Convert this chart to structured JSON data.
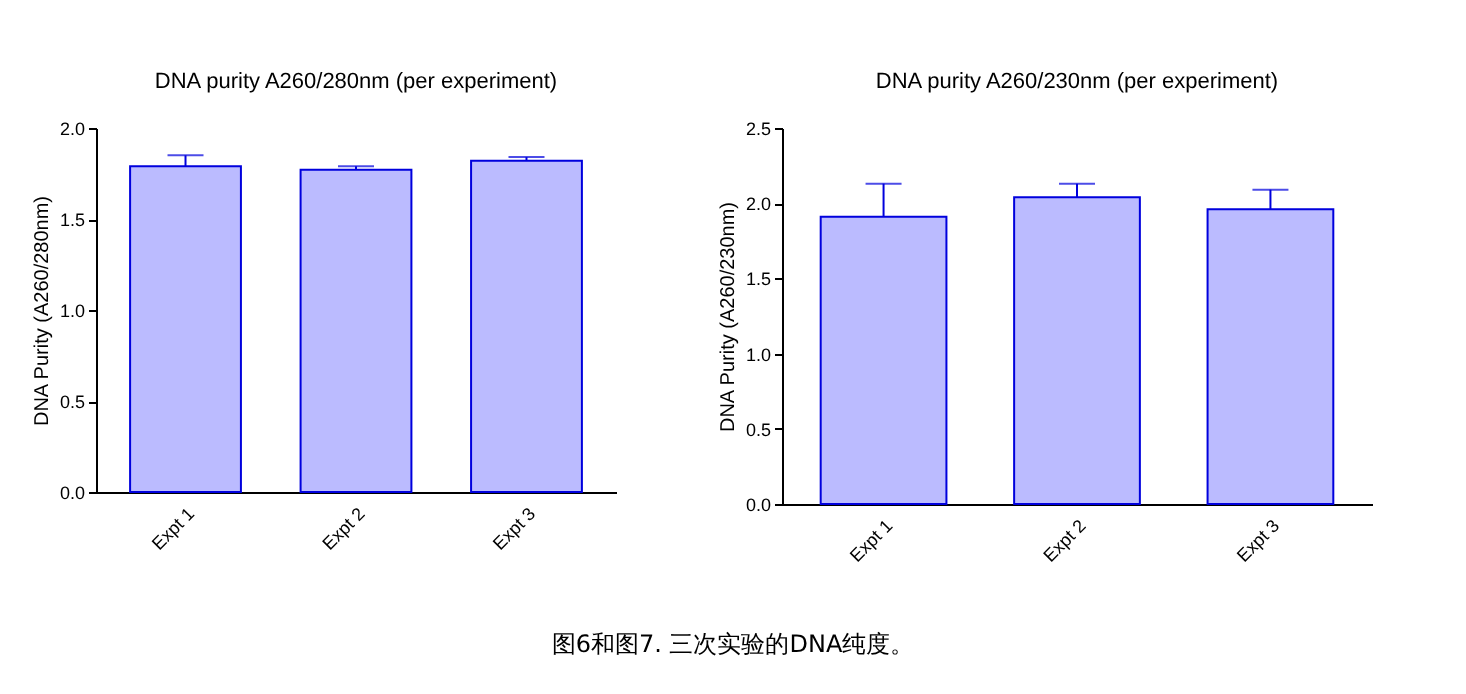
{
  "chart_data": [
    {
      "type": "bar",
      "title": "DNA purity A260/280nm (per experiment)",
      "ylabel": "DNA Purity (A260/280nm)",
      "categories": [
        "Expt 1",
        "Expt 2",
        "Expt 3"
      ],
      "values": [
        1.79,
        1.77,
        1.82
      ],
      "errors": [
        [
          1.79,
          1.85
        ],
        [
          1.77,
          1.79
        ],
        [
          1.82,
          1.84
        ]
      ],
      "color": "#bbbbff",
      "ylim": [
        0,
        2.0
      ],
      "yticks": [
        {
          "value": 0,
          "label": "0.0"
        },
        0.5,
        {
          "value": 1,
          "label": "1.0"
        },
        1.5,
        {
          "value": 2,
          "label": "2.0"
        }
      ],
      "grid": false,
      "annotations": [
        "图6和图7. 三次实验的DNA纯度。"
      ]
    },
    {
      "type": "bar",
      "title": "DNA purity A260/230nm (per experiment)",
      "ylabel": "DNA Purity (A260/230nm)",
      "categories": [
        "Expt 1",
        "Expt 2",
        "Expt 3"
      ],
      "values": [
        1.91,
        2.04,
        1.96
      ],
      "errors": [
        [
          1.91,
          2.13
        ],
        [
          2.04,
          2.13
        ],
        [
          1.96,
          2.09
        ]
      ],
      "color": "#bbbbff",
      "ylim": [
        0,
        2.5
      ],
      "yticks": [
        {
          "value": 0,
          "label": "0.0"
        },
        0.5,
        {
          "value": 1,
          "label": "1.0"
        },
        1.5,
        {
          "value": 2,
          "label": "2.0"
        },
        2.5
      ],
      "grid": false
    }
  ]
}
